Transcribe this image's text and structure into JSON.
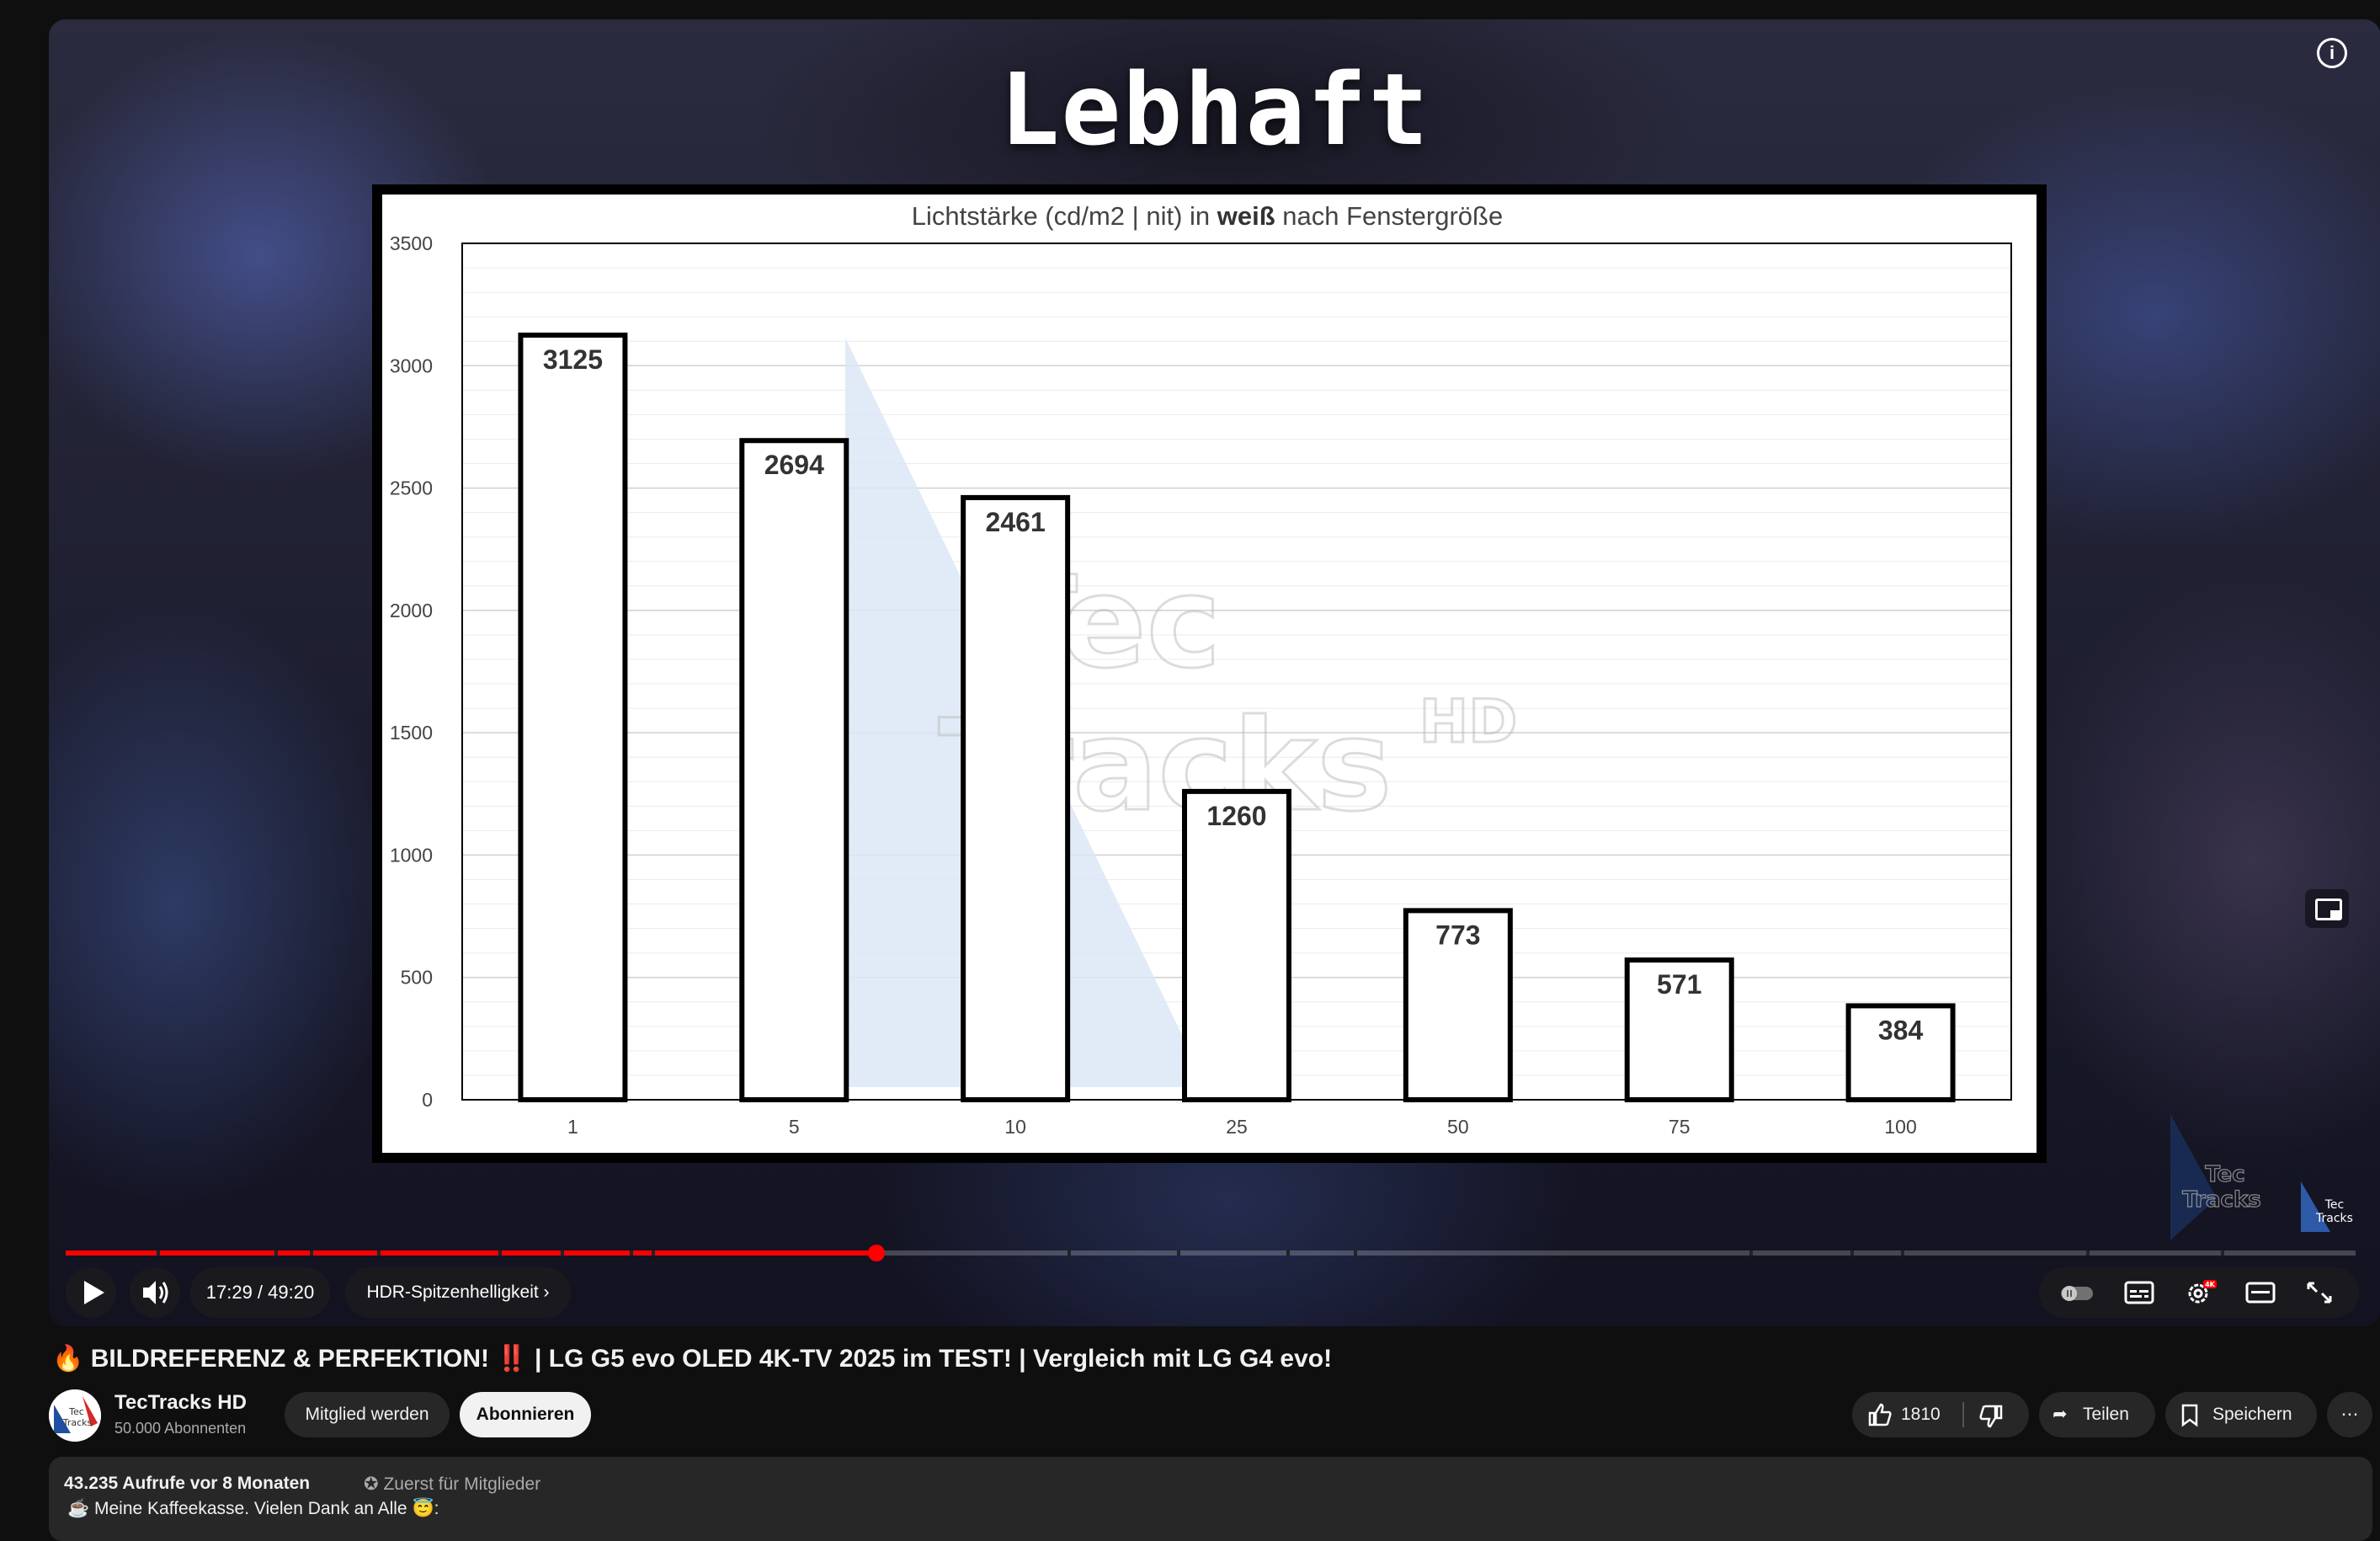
{
  "video": {
    "overlay_title": "Lebhaft",
    "info_icon": "info-icon",
    "miniplayer_icon": "miniplayer-icon",
    "watermark_logo": "TecTracks HD"
  },
  "chart_data": {
    "type": "bar",
    "title": "Lichtstärke (cd/m2 | nit)  in weiß nach Fenstergröße",
    "title_parts": [
      "Lichtstärke (cd/m2 | nit)  in ",
      "weiß",
      " nach Fenstergröße"
    ],
    "categories": [
      "1",
      "5",
      "10",
      "25",
      "50",
      "75",
      "100"
    ],
    "values": [
      3125,
      2694,
      2461,
      1260,
      773,
      571,
      384
    ],
    "ylim": [
      0,
      3500
    ],
    "yticks": [
      0,
      500,
      1000,
      1500,
      2000,
      2500,
      3000,
      3500
    ],
    "grid": true,
    "watermark": "TecTracks HD",
    "bar_fill": "#ffffff",
    "bar_stroke": "#000000"
  },
  "player": {
    "progress_fraction": 0.354,
    "current_time": "17:29",
    "duration": "49:20",
    "time_text": "17:29 / 49:20",
    "chapter_label": "HDR-Spitzenhelligkeit",
    "accent_color": "#ff0000",
    "icons": [
      "play-icon",
      "volume-icon",
      "autoplay-toggle-icon",
      "subtitles-icon",
      "settings-icon",
      "theater-mode-icon",
      "fullscreen-icon"
    ],
    "settings_badge": "4K"
  },
  "watch": {
    "title": "🔥 BILDREFERENZ & PERFEKTION! ‼️ | LG G5 evo OLED 4K-TV 2025 im TEST! | Vergleich mit LG G4 evo!",
    "channel_name": "TecTracks HD",
    "avatar_text": "Tec Tracks",
    "subscribers": "50.000 Abonnenten",
    "join_label": "Mitglied werden",
    "subscribe_label": "Abonnieren",
    "likes": "1810",
    "share_label": "Teilen",
    "save_label": "Speichern",
    "more_label": "⋯"
  },
  "description": {
    "views_and_date": "43.235 Aufrufe  vor 8 Monaten",
    "members_first": "Zuerst für Mitglieder",
    "line1": "☕ Meine Kaffeekasse. Vielen Dank an Alle 😇:"
  }
}
